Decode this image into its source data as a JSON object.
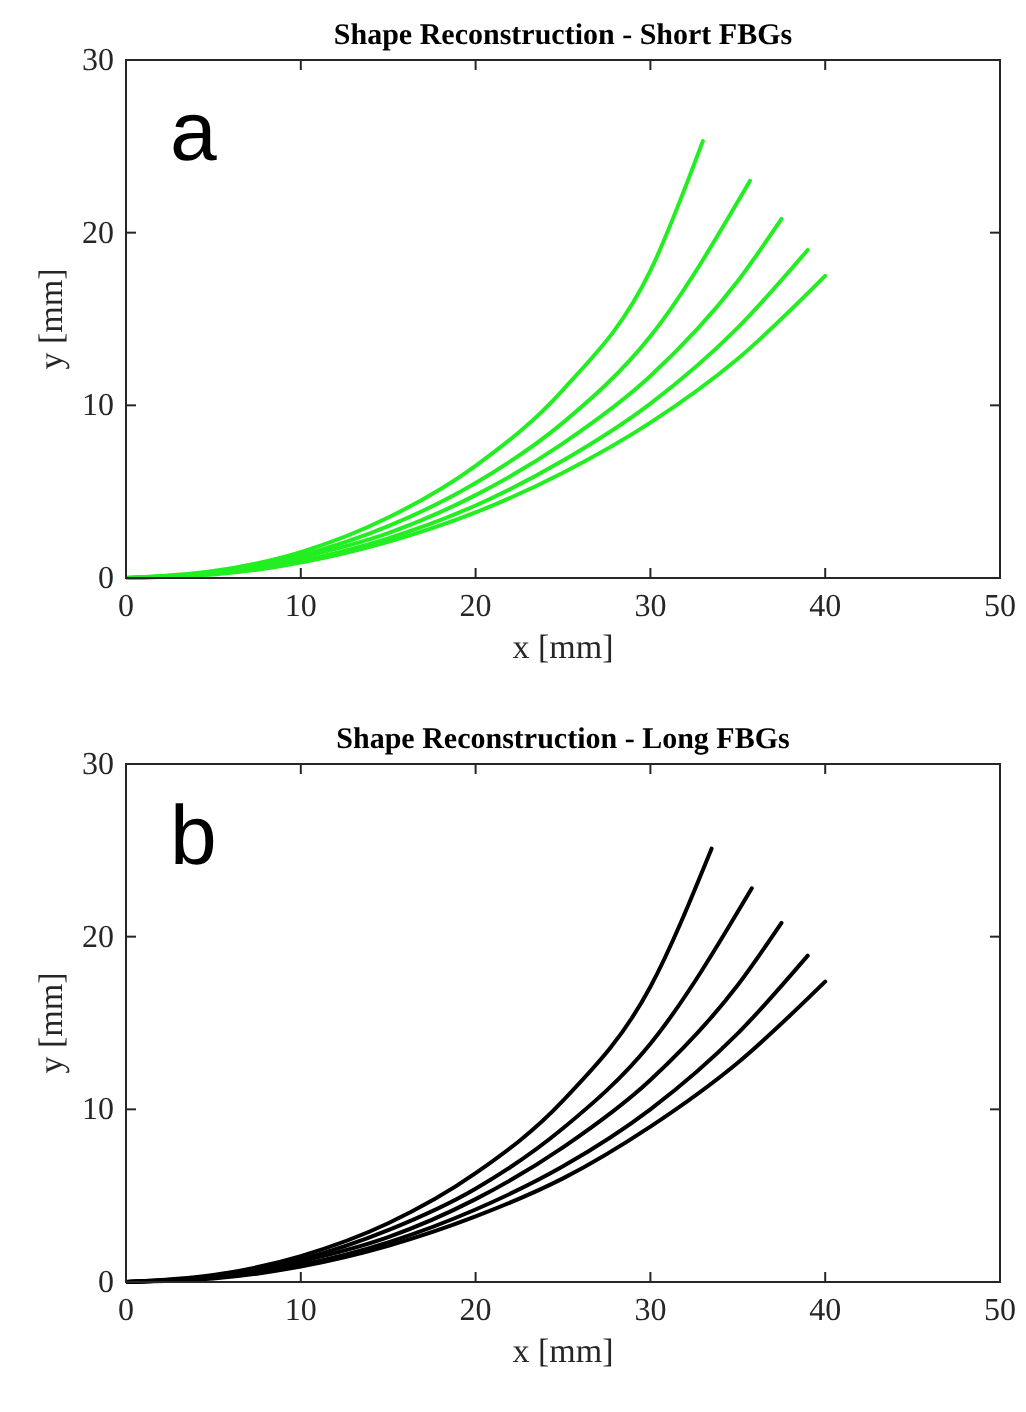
{
  "chart_data": [
    {
      "type": "line",
      "title": "Shape Reconstruction - Short FBGs",
      "xlabel": "x [mm]",
      "ylabel": "y [mm]",
      "annotations": [
        "a"
      ],
      "xlim": [
        0,
        50
      ],
      "ylim": [
        0,
        30
      ],
      "xticks": [
        0,
        10,
        20,
        30,
        40,
        50
      ],
      "yticks": [
        0,
        10,
        20,
        30
      ],
      "series": [
        {
          "color": "#22ee22",
          "x": [
            0,
            5,
            10,
            15,
            20,
            25,
            30,
            33
          ],
          "values": [
            0,
            0.4,
            1.5,
            3.5,
            6.5,
            10.9,
            17.8,
            25.3
          ]
        },
        {
          "color": "#22ee22",
          "x": [
            0,
            5,
            10,
            15,
            20,
            25,
            30,
            35.7
          ],
          "values": [
            0,
            0.3,
            1.3,
            3,
            5.5,
            9,
            14,
            23
          ]
        },
        {
          "color": "#22ee22",
          "x": [
            0,
            5,
            10,
            15,
            20,
            25,
            30,
            35,
            37.5
          ],
          "values": [
            0,
            0.3,
            1.2,
            2.6,
            4.8,
            7.8,
            11.7,
            17.2,
            20.8
          ]
        },
        {
          "color": "#22ee22",
          "x": [
            0,
            5,
            10,
            15,
            20,
            25,
            30,
            35,
            39
          ],
          "values": [
            0,
            0.3,
            1,
            2.3,
            4.2,
            6.8,
            10.1,
            14.5,
            19
          ]
        },
        {
          "color": "#22ee22",
          "x": [
            0,
            5,
            10,
            15,
            20,
            25,
            30,
            35,
            40
          ],
          "values": [
            0,
            0.2,
            0.9,
            2.1,
            3.8,
            6.1,
            9,
            12.7,
            17.5
          ]
        }
      ]
    },
    {
      "type": "line",
      "title": "Shape Reconstruction - Long FBGs",
      "xlabel": "x [mm]",
      "ylabel": "y [mm]",
      "annotations": [
        "b"
      ],
      "xlim": [
        0,
        50
      ],
      "ylim": [
        0,
        30
      ],
      "xticks": [
        0,
        10,
        20,
        30,
        40,
        50
      ],
      "yticks": [
        0,
        10,
        20,
        30
      ],
      "series": [
        {
          "color": "#000000",
          "x": [
            0,
            5,
            10,
            15,
            20,
            25,
            30,
            33.5
          ],
          "values": [
            0,
            0.4,
            1.5,
            3.4,
            6.3,
            10.5,
            17.1,
            25.1
          ]
        },
        {
          "color": "#000000",
          "x": [
            0,
            5,
            10,
            15,
            20,
            25,
            30,
            35.8
          ],
          "values": [
            0,
            0.3,
            1.3,
            3,
            5.4,
            8.9,
            13.8,
            22.8
          ]
        },
        {
          "color": "#000000",
          "x": [
            0,
            5,
            10,
            15,
            20,
            25,
            30,
            35,
            37.5
          ],
          "values": [
            0,
            0.3,
            1.2,
            2.6,
            4.8,
            7.8,
            11.7,
            17.2,
            20.8
          ]
        },
        {
          "color": "#000000",
          "x": [
            0,
            5,
            10,
            15,
            20,
            25,
            30,
            35,
            39
          ],
          "values": [
            0,
            0.3,
            1,
            2.3,
            4.2,
            6.7,
            10,
            14.4,
            18.9
          ]
        },
        {
          "color": "#000000",
          "x": [
            0,
            5,
            10,
            15,
            20,
            25,
            30,
            35,
            40
          ],
          "values": [
            0,
            0.2,
            0.9,
            2.1,
            3.8,
            6,
            9,
            12.7,
            17.4
          ]
        }
      ]
    }
  ]
}
